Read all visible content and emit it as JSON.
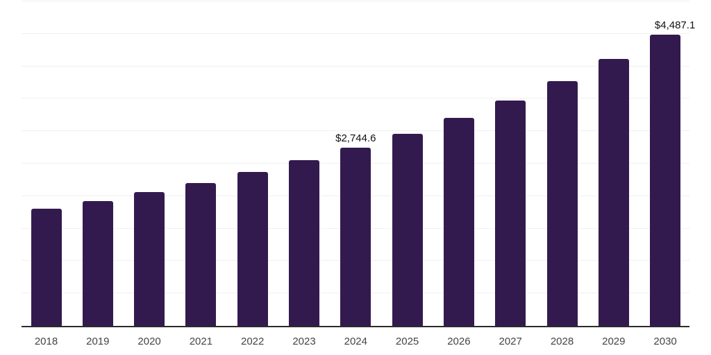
{
  "chart_data": {
    "type": "bar",
    "categories": [
      "2018",
      "2019",
      "2020",
      "2021",
      "2022",
      "2023",
      "2024",
      "2025",
      "2026",
      "2027",
      "2028",
      "2029",
      "2030"
    ],
    "values": [
      1810,
      1925,
      2065,
      2200,
      2370,
      2555,
      2744.6,
      2960,
      3210,
      3470,
      3770,
      4115,
      4487.1
    ],
    "title": "",
    "xlabel": "",
    "ylabel": "",
    "ylim": [
      0,
      5000
    ],
    "gridline_step": 500,
    "grid": "horizontal-only",
    "legend_position": "none",
    "y_axis_labels_visible": false,
    "annotations": [
      {
        "category": "2024",
        "index": 6,
        "text": "$2,744.6",
        "dx": 0
      },
      {
        "category": "2030",
        "index": 12,
        "text": "$4,487.1",
        "dx": 14
      }
    ],
    "bar_color": "#331a4e",
    "gridline_color": "#f0f0f2",
    "axis_line_color": "#2b2b2b",
    "data_label_color": "#111111",
    "tick_label_color": "#444444",
    "background_color": "#ffffff"
  }
}
